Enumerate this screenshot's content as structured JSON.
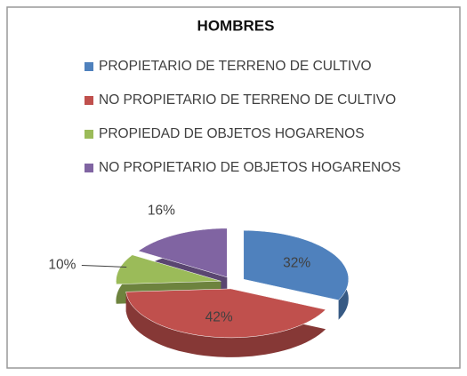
{
  "chart_data": {
    "type": "pie",
    "title": "HOMBRES",
    "categories": [
      "PROPIETARIO DE TERRENO DE CULTIVO",
      "NO PROPIETARIO DE TERRENO DE CULTIVO",
      "PROPIEDAD DE OBJETOS HOGARENOS",
      "NO PROPIETARIO DE OBJETOS HOGARENOS"
    ],
    "values": [
      32,
      42,
      10,
      16
    ],
    "value_labels": [
      "32%",
      "42%",
      "10%",
      "16%"
    ],
    "colors": [
      "#4f81bd",
      "#c0504d",
      "#9bbb59",
      "#8064a2"
    ],
    "legend": "top"
  }
}
